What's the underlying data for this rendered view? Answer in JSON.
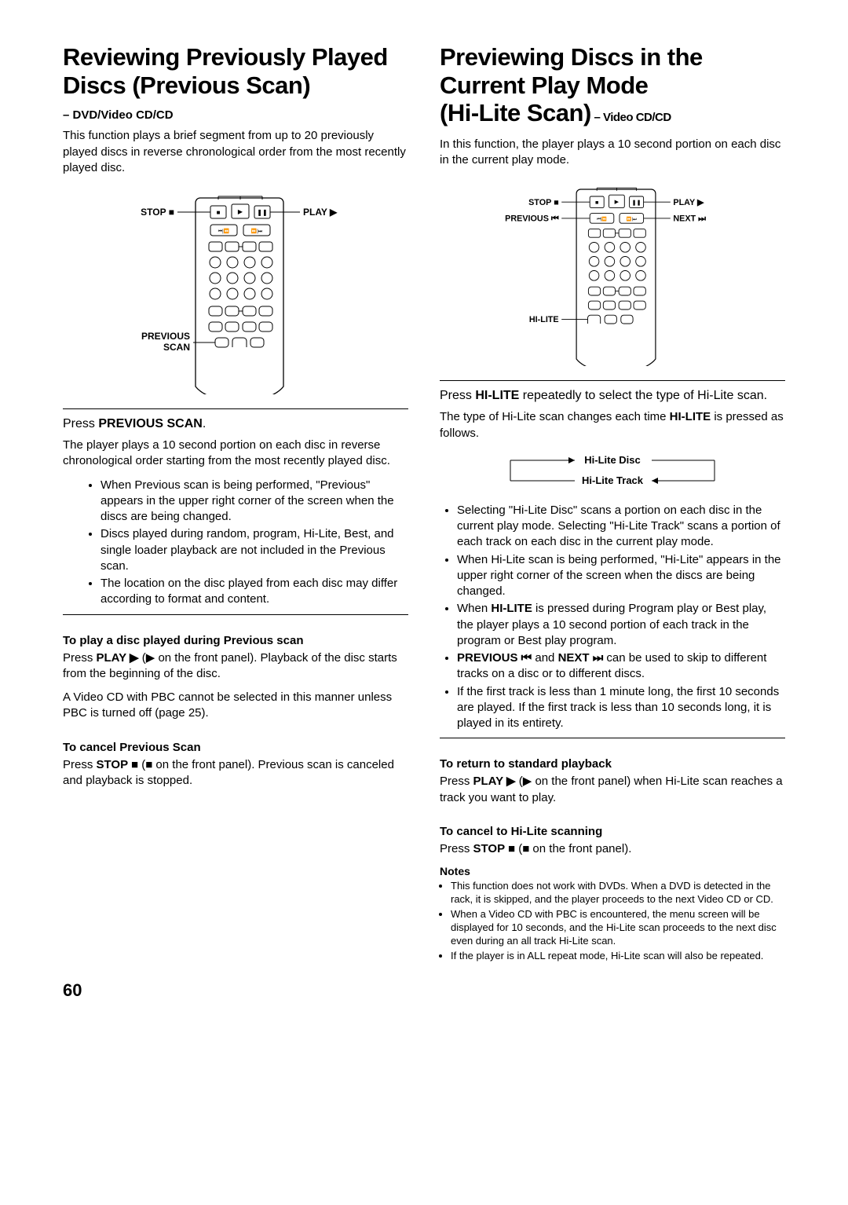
{
  "left": {
    "title": "Reviewing Previously Played Discs (Previous Scan)",
    "subtitle": "– DVD/Video CD/CD",
    "intro": "This function plays a brief segment from up to 20 previously played discs in reverse chronological order from the most recently played disc.",
    "remote": {
      "stop": "STOP ■",
      "play": "PLAY ▶",
      "previous_scan": "PREVIOUS SCAN"
    },
    "press_heading_prefix": "Press ",
    "press_heading_bold": "PREVIOUS SCAN",
    "press_heading_suffix": ".",
    "press_body": "The player plays a 10 second portion on each disc in reverse chronological order starting from the most recently played disc.",
    "bullets": [
      "When Previous scan is being performed, \"Previous\" appears in the upper right corner of the screen when the discs are being changed.",
      "Discs played during random, program, Hi-Lite, Best, and single loader playback are not included in the Previous scan.",
      "The location on the disc played from each disc may differ according to format and content."
    ],
    "play_h": "To play a disc played during Previous scan",
    "play_body_prefix": "Press ",
    "play_body_bold": "PLAY ▶",
    "play_body_suffix": " (▶ on the front panel). Playback of the disc starts from the beginning of the disc.",
    "play_body2": "A Video CD with PBC cannot be selected in this manner unless PBC is turned off (page 25).",
    "cancel_h": "To cancel Previous Scan",
    "cancel_body_prefix": "Press ",
    "cancel_body_bold": "STOP ■",
    "cancel_body_suffix": " (■ on the front panel). Previous scan is canceled and playback is stopped."
  },
  "right": {
    "title_main": "Previewing Discs in the Current Play Mode\n(Hi-Lite Scan)",
    "title_suffix": " – Video CD/CD",
    "intro": "In this function, the player plays a 10 second portion on each disc in the current play mode.",
    "remote": {
      "stop": "STOP ■",
      "previous": "PREVIOUS ⏮",
      "play": "PLAY ▶",
      "next": "NEXT ⏭",
      "hilite": "HI-LITE"
    },
    "press_heading_prefix": "Press ",
    "press_heading_bold": "HI-LITE",
    "press_heading_suffix": " repeatedly to select the type of Hi-Lite scan.",
    "press_body_prefix": "The type of Hi-Lite scan changes each time ",
    "press_body_bold": "HI-LITE",
    "press_body_suffix": " is pressed as follows.",
    "cycle": {
      "top": "Hi-Lite Disc",
      "bottom": "Hi-Lite Track"
    },
    "bullets": [
      "Selecting \"Hi-Lite Disc\" scans a portion on each disc in the current play mode. Selecting \"Hi-Lite Track\" scans a portion of each track on each disc in the current play mode.",
      "When Hi-Lite scan is being performed, \"Hi-Lite\" appears in the upper right corner of the screen when the discs are being changed.",
      "When |HI-LITE| is pressed during Program play or Best play, the player plays a 10 second portion of each track in the program or Best play program.",
      "|PREVIOUS ⏮| and |NEXT ⏭| can be used to skip to different tracks on a disc or to different discs.",
      "If the first track is less than 1 minute long, the first 10 seconds are played. If the first track is less than 10 seconds long, it is played in its entirety."
    ],
    "return_h": "To return to standard playback",
    "return_body_prefix": "Press ",
    "return_body_bold": "PLAY ▶",
    "return_body_suffix": " (▶ on the front panel) when Hi-Lite scan reaches a track you want to play.",
    "cancel_h": "To cancel to Hi-Lite scanning",
    "cancel_body_prefix": "Press ",
    "cancel_body_bold": "STOP ■",
    "cancel_body_suffix": " (■ on the front panel).",
    "notes_h": "Notes",
    "notes": [
      "This function does not work with DVDs. When a DVD is detected in the rack, it is skipped, and the player proceeds to the next Video CD or CD.",
      "When a Video CD with PBC is encountered, the menu screen will be displayed for 10 seconds, and the Hi-Lite scan proceeds to the next disc even during an all track Hi-Lite scan.",
      "If the player is in ALL repeat mode, Hi-Lite scan will also be repeated."
    ]
  },
  "page_number": "60"
}
